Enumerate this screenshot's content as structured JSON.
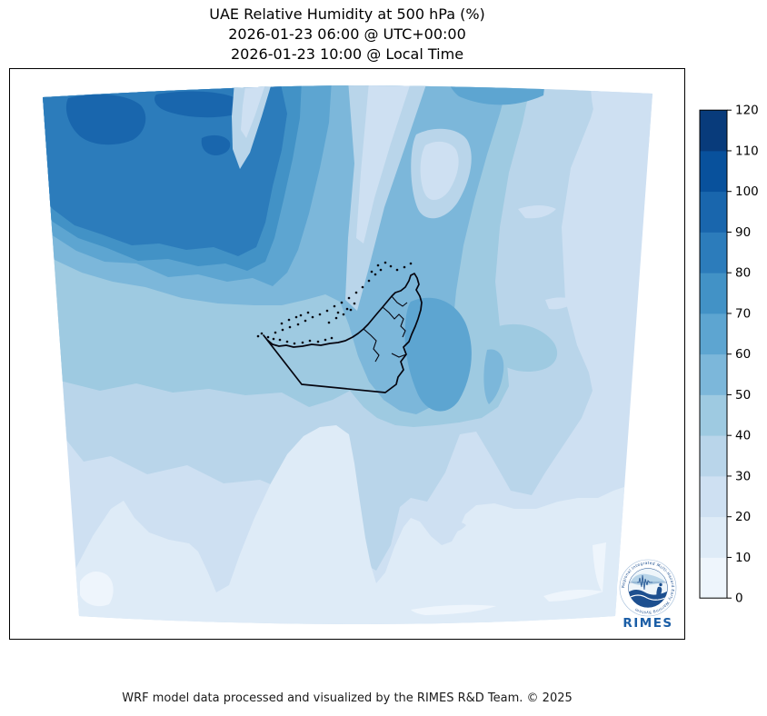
{
  "header": {
    "title": "UAE Relative Humidity at 500 hPa (%)",
    "utc_line": "2026-01-23 06:00 @ UTC+00:00",
    "local_line": "2026-01-23 10:00 @ Local Time"
  },
  "footer": {
    "credit": "WRF model data processed and visualized by the RIMES R&D Team. © 2025"
  },
  "logo": {
    "acronym": "RIMES",
    "ring_text": "Regional Integrated Multi-Hazard Early Warning System"
  },
  "chart_data": {
    "type": "heatmap",
    "subtype": "filled-contour-map",
    "region": "UAE",
    "variable": "Relative Humidity",
    "level": "500 hPa",
    "units": "%",
    "title": "UAE Relative Humidity at 500 hPa (%)",
    "valid_time_utc": "2026-01-23 06:00 @ UTC+00:00",
    "valid_time_local": "2026-01-23 10:00 @ Local Time",
    "overlay": "UAE coastline, islands and administrative boundary in black",
    "colorbar": {
      "orientation": "vertical",
      "position": "right",
      "min": 0,
      "max": 120,
      "step": 10,
      "ticks": [
        0,
        10,
        20,
        30,
        40,
        50,
        60,
        70,
        80,
        90,
        100,
        110,
        120
      ],
      "colors": [
        "#eef5fc",
        "#deebf7",
        "#cee0f2",
        "#b9d5ea",
        "#9ecae1",
        "#7cb7da",
        "#5da5d1",
        "#4292c6",
        "#2c7cbb",
        "#1966ad",
        "#08519c",
        "#083b7b"
      ],
      "colormap": "Blues"
    },
    "contour_levels": [
      0,
      10,
      20,
      30,
      40,
      50,
      60,
      70,
      80,
      90,
      100,
      110,
      120
    ],
    "approx_field_grid": {
      "description": "Approximate relative humidity (%) read from the shading on a 6x6 grid over the model domain; rows ordered north to south, columns west to east",
      "values": [
        [
          90,
          85,
          70,
          50,
          40,
          25
        ],
        [
          75,
          80,
          60,
          45,
          35,
          30
        ],
        [
          55,
          60,
          50,
          55,
          35,
          30
        ],
        [
          40,
          45,
          50,
          60,
          40,
          30
        ],
        [
          25,
          30,
          35,
          45,
          35,
          25
        ],
        [
          15,
          12,
          22,
          30,
          25,
          20
        ]
      ]
    }
  }
}
